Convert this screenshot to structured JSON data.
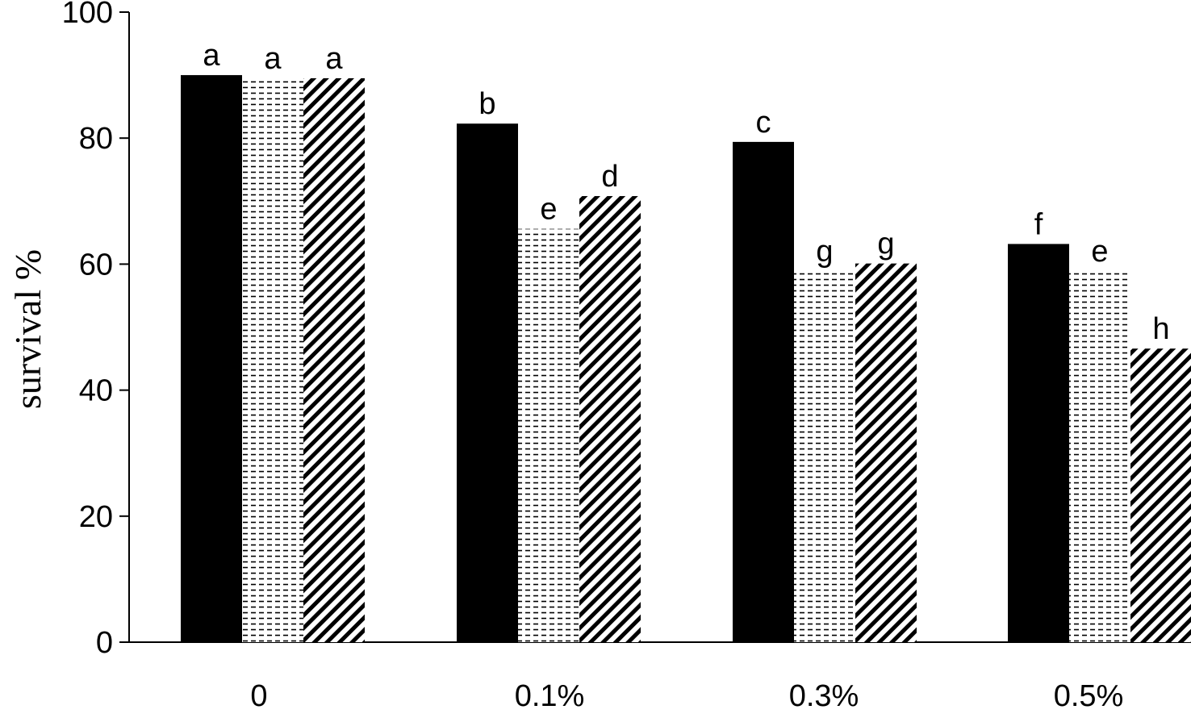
{
  "chart_data": {
    "type": "bar",
    "title": "",
    "xlabel": "",
    "ylabel": "survival %",
    "ylim": [
      0,
      100
    ],
    "yticks": [
      0,
      20,
      40,
      60,
      80,
      100
    ],
    "grid": false,
    "legend": "none",
    "categories": [
      "0",
      "0.1%",
      "0.3%",
      "0.5%"
    ],
    "series": [
      {
        "pattern": "solid",
        "color": "#000000",
        "values": [
          90,
          82.3,
          79.4,
          63.2
        ],
        "labels": [
          "a",
          "b",
          "c",
          "f"
        ]
      },
      {
        "pattern": "horizontal-dashes",
        "color": "#000000",
        "values": [
          89.5,
          65.6,
          58.9,
          58.9
        ],
        "labels": [
          "a",
          "e",
          "g",
          "e"
        ]
      },
      {
        "pattern": "diagonal-stripes",
        "color": "#000000",
        "values": [
          89.5,
          70.8,
          60.1,
          46.6
        ],
        "labels": [
          "a",
          "d",
          "g",
          "h"
        ]
      }
    ]
  }
}
